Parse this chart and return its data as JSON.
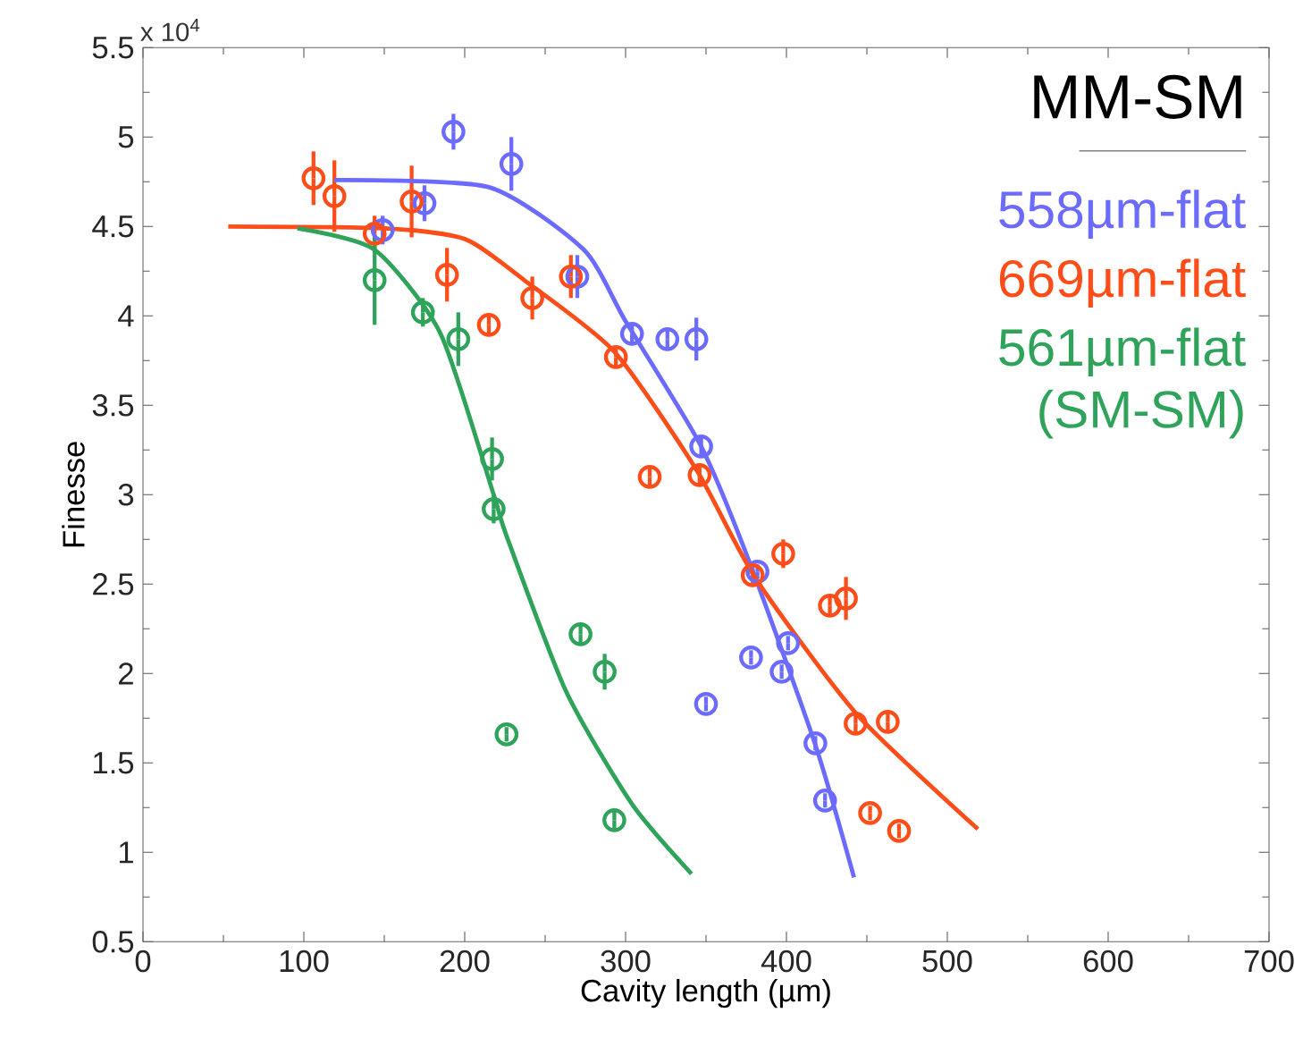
{
  "chart_data": {
    "type": "scatter",
    "xlabel": "Cavity length (µm)",
    "ylabel": "Finesse",
    "legend_title": "MM-SM",
    "legend": "top right",
    "marker": "circle",
    "line_style": "solid",
    "annotations": [
      "x 10$^{4}$"
    ],
    "xlim": [
      0,
      700
    ],
    "xticks": [
      0,
      100,
      200,
      300,
      400,
      500,
      600,
      700
    ],
    "ylim": [
      0.5,
      5.5
    ],
    "yticks": [
      0.5,
      1,
      1.5,
      2,
      2.5,
      3,
      3.5,
      4,
      4.5,
      5,
      5.5
    ],
    "series": [
      {
        "name": "558µm-flat",
        "color": "#6b6bff",
        "x": [
          149,
          175,
          193,
          229,
          270,
          304,
          326,
          344,
          347,
          382,
          378,
          401,
          397,
          350,
          418,
          424
        ],
        "values": [
          4.48,
          4.63,
          5.03,
          4.85,
          4.22,
          3.9,
          3.87,
          3.87,
          3.27,
          2.57,
          2.09,
          2.17,
          2.01,
          1.83,
          1.61,
          1.29
        ],
        "errors": [
          0.08,
          0.1,
          0.1,
          0.15,
          0.12,
          0.05,
          0.05,
          0.12,
          0.05,
          0.04,
          0.04,
          0.04,
          0.04,
          0.04,
          0.04,
          0.04
        ]
      },
      {
        "name": "669µm-flat",
        "color": "#ff4d1a",
        "x": [
          106,
          119,
          144,
          167,
          189,
          215,
          242,
          266,
          294,
          315,
          346,
          398,
          379,
          427,
          437,
          443,
          463,
          452,
          470
        ],
        "values": [
          4.77,
          4.67,
          4.46,
          4.64,
          4.23,
          3.95,
          4.1,
          4.22,
          3.77,
          3.1,
          3.11,
          2.67,
          2.55,
          2.38,
          2.42,
          1.72,
          1.73,
          1.22,
          1.12
        ],
        "errors": [
          0.15,
          0.2,
          0.1,
          0.2,
          0.15,
          0.05,
          0.12,
          0.12,
          0.05,
          0.05,
          0.05,
          0.08,
          0.05,
          0.05,
          0.12,
          0.05,
          0.05,
          0.04,
          0.04
        ]
      },
      {
        "name": "561µm-flat (SM-SM)",
        "color": "#2fa35a",
        "x": [
          144,
          174,
          196,
          217,
          218,
          272,
          287,
          226,
          293
        ],
        "values": [
          4.2,
          4.02,
          3.87,
          3.2,
          2.92,
          2.22,
          2.01,
          1.66,
          1.18
        ],
        "errors": [
          0.25,
          0.08,
          0.15,
          0.12,
          0.08,
          0.05,
          0.1,
          0.04,
          0.05
        ]
      },
      {
        "type": "line",
        "marker": "none",
        "color": "#6b6bff",
        "x": [
          119,
          215,
          274,
          300,
          347,
          378,
          418,
          442
        ],
        "values": [
          4.76,
          4.72,
          4.37,
          3.97,
          3.27,
          2.6,
          1.6,
          0.86
        ]
      },
      {
        "type": "line",
        "marker": "none",
        "color": "#ff4d1a",
        "x": [
          53,
          150,
          200,
          237,
          293,
          344,
          381,
          444,
          519
        ],
        "values": [
          4.5,
          4.49,
          4.43,
          4.2,
          3.8,
          3.14,
          2.53,
          1.77,
          1.13
        ]
      },
      {
        "type": "line",
        "marker": "none",
        "color": "#2fa35a",
        "x": [
          96,
          144,
          185,
          218,
          226,
          263,
          304,
          341
        ],
        "values": [
          4.49,
          4.37,
          3.9,
          3.0,
          2.77,
          1.9,
          1.27,
          0.88
        ]
      }
    ]
  }
}
